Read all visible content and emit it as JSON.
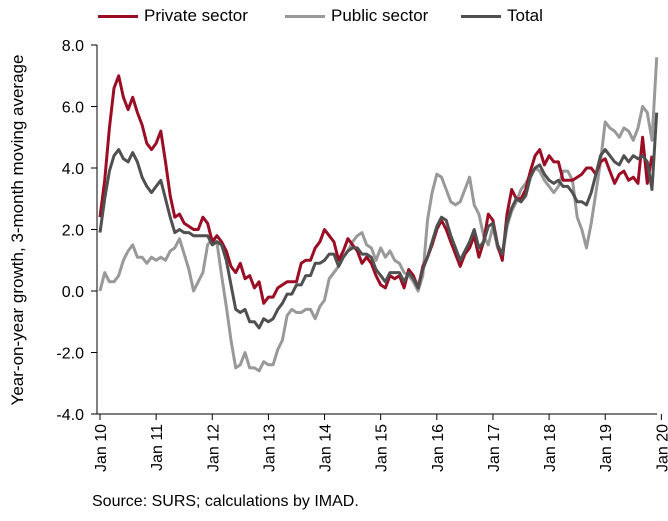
{
  "chart_data": {
    "type": "line",
    "ylabel": "Year-on-year growth, 3-month moving average",
    "xlabel": "",
    "title": "",
    "ylim": [
      -4.0,
      8.0
    ],
    "yticks": [
      "-4.0",
      "-2.0",
      "0.0",
      "2.0",
      "4.0",
      "6.0",
      "8.0"
    ],
    "xticks": [
      "Jan 10",
      "Jan 11",
      "Jan 12",
      "Jan 13",
      "Jan 14",
      "Jan 15",
      "Jan 16",
      "Jan 17",
      "Jan 18",
      "Jan 19",
      "Jan 20"
    ],
    "x_start": "2010-01",
    "legend_position": "top",
    "grid": false,
    "series": [
      {
        "name": "Private sector",
        "color": "#9b0d24",
        "values": [
          2.4,
          3.6,
          5.3,
          6.6,
          7.0,
          6.3,
          5.9,
          6.3,
          5.8,
          5.4,
          4.8,
          4.6,
          4.8,
          5.2,
          4.2,
          3.1,
          2.4,
          2.5,
          2.2,
          2.1,
          2.0,
          2.0,
          2.4,
          2.2,
          1.6,
          1.8,
          1.6,
          1.3,
          0.8,
          0.6,
          0.9,
          0.4,
          0.5,
          0.1,
          0.3,
          -0.4,
          -0.2,
          -0.2,
          0.1,
          0.2,
          0.3,
          0.3,
          0.3,
          0.9,
          1.0,
          1.0,
          1.4,
          1.6,
          2.0,
          1.8,
          1.6,
          1.0,
          1.3,
          1.7,
          1.5,
          1.3,
          0.9,
          1.1,
          0.9,
          0.5,
          0.2,
          0.1,
          0.5,
          0.4,
          0.5,
          0.1,
          0.7,
          0.5,
          0.1,
          0.8,
          1.1,
          1.5,
          2.0,
          2.3,
          2.0,
          1.6,
          1.2,
          0.8,
          1.2,
          1.4,
          1.8,
          1.1,
          1.6,
          2.5,
          2.3,
          1.5,
          1.0,
          2.5,
          3.3,
          3.0,
          3.0,
          3.3,
          3.9,
          4.4,
          4.6,
          4.1,
          4.4,
          4.2,
          4.2,
          3.6,
          3.6,
          3.6,
          3.7,
          3.8,
          4.0,
          4.0,
          3.8,
          4.2,
          4.3,
          3.9,
          3.5,
          3.8,
          3.9,
          3.6,
          3.7,
          3.5,
          5.0,
          3.5,
          4.4
        ]
      },
      {
        "name": "Public sector",
        "color": "#999999",
        "values": [
          0.0,
          0.6,
          0.3,
          0.3,
          0.5,
          1.0,
          1.3,
          1.5,
          1.1,
          1.1,
          0.9,
          1.1,
          1.0,
          1.1,
          1.0,
          1.3,
          1.4,
          1.7,
          1.2,
          0.7,
          0.0,
          0.3,
          0.6,
          1.5,
          1.7,
          1.6,
          0.5,
          -0.5,
          -1.6,
          -2.5,
          -2.4,
          -2.0,
          -2.5,
          -2.5,
          -2.6,
          -2.3,
          -2.4,
          -2.4,
          -1.9,
          -1.6,
          -0.8,
          -0.6,
          -0.7,
          -0.7,
          -0.6,
          -0.6,
          -0.9,
          -0.5,
          -0.3,
          0.4,
          0.6,
          0.8,
          1.1,
          1.3,
          1.6,
          1.8,
          1.9,
          1.5,
          1.4,
          1.0,
          1.4,
          1.1,
          1.3,
          1.0,
          0.9,
          0.6,
          0.5,
          0.3,
          0.0,
          0.5,
          2.3,
          3.2,
          3.8,
          3.7,
          3.3,
          2.9,
          2.8,
          2.9,
          3.3,
          3.7,
          2.8,
          2.5,
          1.8,
          1.5,
          2.1,
          1.4,
          1.1,
          2.1,
          2.6,
          2.9,
          3.3,
          3.5,
          3.8,
          4.0,
          3.9,
          3.6,
          3.4,
          3.2,
          3.4,
          3.9,
          3.9,
          3.6,
          2.4,
          2.0,
          1.4,
          2.2,
          3.2,
          4.2,
          5.5,
          5.3,
          5.2,
          5.0,
          5.3,
          5.2,
          4.9,
          5.3,
          6.0,
          5.8,
          4.9,
          7.6
        ]
      },
      {
        "name": "Total",
        "color": "#505050",
        "values": [
          1.9,
          3.0,
          3.9,
          4.4,
          4.6,
          4.3,
          4.2,
          4.5,
          4.2,
          3.7,
          3.4,
          3.2,
          3.4,
          3.6,
          3.0,
          2.4,
          1.9,
          2.0,
          1.9,
          1.9,
          1.8,
          1.8,
          1.8,
          1.8,
          1.5,
          1.6,
          1.5,
          1.0,
          0.2,
          -0.6,
          -0.7,
          -0.6,
          -1.0,
          -1.0,
          -1.2,
          -0.9,
          -1.0,
          -0.9,
          -0.6,
          -0.4,
          -0.1,
          -0.1,
          0.2,
          0.2,
          0.5,
          0.5,
          0.9,
          0.9,
          1.0,
          1.2,
          1.2,
          0.8,
          1.1,
          1.3,
          1.4,
          1.4,
          1.2,
          1.2,
          1.1,
          0.7,
          0.5,
          0.3,
          0.6,
          0.6,
          0.6,
          0.3,
          0.6,
          0.4,
          0.1,
          0.7,
          1.1,
          1.6,
          2.1,
          2.4,
          2.3,
          1.8,
          1.4,
          1.0,
          1.3,
          1.6,
          2.0,
          1.4,
          1.6,
          2.1,
          2.2,
          1.5,
          1.2,
          2.2,
          2.7,
          3.0,
          2.9,
          3.1,
          3.7,
          4.0,
          4.1,
          3.8,
          3.6,
          3.5,
          3.6,
          3.4,
          3.4,
          3.2,
          2.9,
          2.9,
          2.8,
          3.2,
          3.8,
          4.4,
          4.6,
          4.4,
          4.2,
          4.1,
          4.4,
          4.2,
          4.4,
          4.3,
          4.4,
          4.2,
          3.3,
          5.8
        ]
      }
    ]
  },
  "source_note": "Source: SURS; calculations by IMAD."
}
